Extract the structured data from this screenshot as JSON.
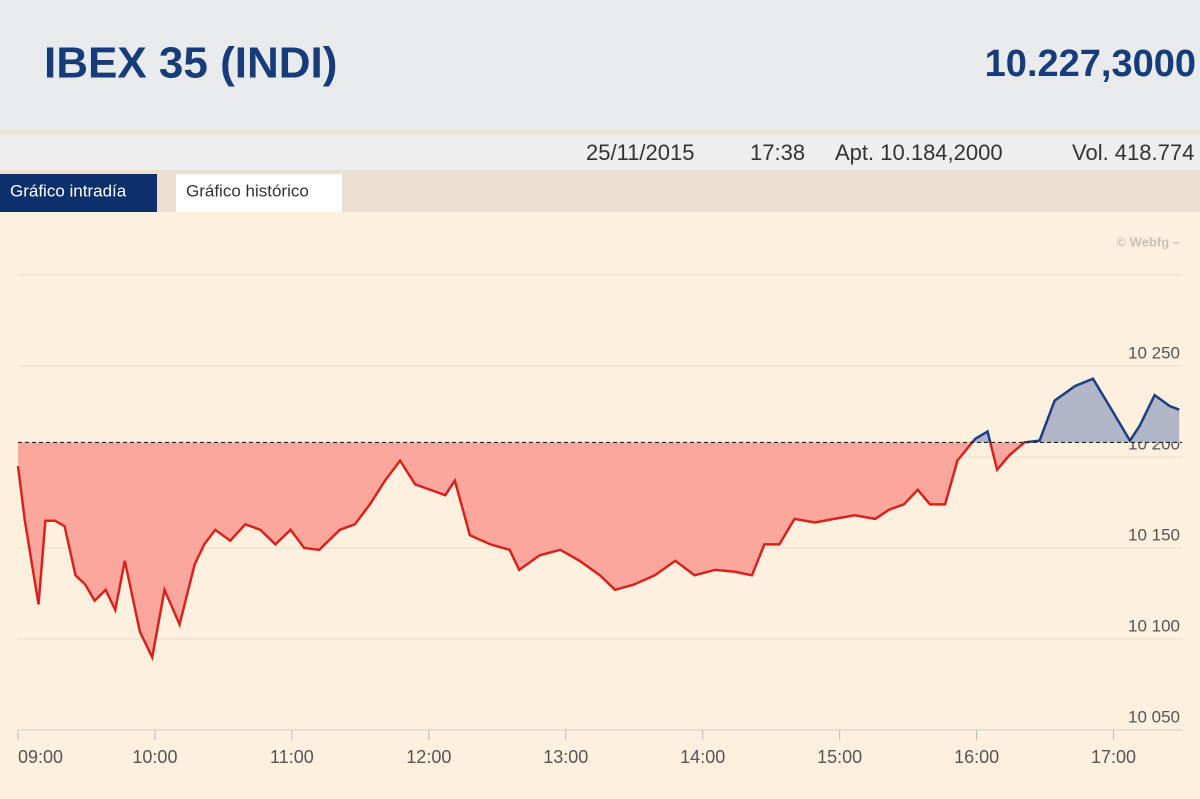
{
  "header": {
    "title": "IBEX 35 (INDI)",
    "price": "10.227,3000"
  },
  "info": {
    "date": "25/11/2015",
    "time": "17:38",
    "open": "Apt. 10.184,2000",
    "volume": "Vol. 418.774"
  },
  "tabs": [
    "Gráfico intradía",
    "Gráfico histórico"
  ],
  "watermark": "© Webfg –",
  "chart_data": {
    "type": "area-line",
    "x": [
      9.0,
      9.05,
      9.15,
      9.2,
      9.27,
      9.34,
      9.42,
      9.49,
      9.56,
      9.64,
      9.71,
      9.78,
      9.89,
      9.98,
      10.07,
      10.18,
      10.29,
      10.36,
      10.44,
      10.55,
      10.66,
      10.77,
      10.88,
      10.99,
      11.09,
      11.2,
      11.35,
      11.46,
      11.57,
      11.68,
      11.79,
      11.9,
      12.01,
      12.12,
      12.19,
      12.3,
      12.45,
      12.59,
      12.66,
      12.81,
      12.96,
      13.1,
      13.25,
      13.36,
      13.5,
      13.65,
      13.8,
      13.94,
      14.09,
      14.23,
      14.36,
      14.45,
      14.56,
      14.67,
      14.82,
      14.96,
      15.11,
      15.26,
      15.36,
      15.47,
      15.57,
      15.66,
      15.77,
      15.86,
      15.99,
      16.08,
      16.15,
      16.24,
      16.35,
      16.46,
      16.57,
      16.72,
      16.85,
      16.97,
      17.12,
      17.19,
      17.3,
      17.41,
      17.48
    ],
    "values": [
      10195,
      10165,
      10119,
      10165,
      10165,
      10162,
      10135,
      10130,
      10121,
      10127,
      10116,
      10143,
      10104,
      10090,
      10127,
      10108,
      10141,
      10152,
      10160,
      10154,
      10163,
      10160,
      10152,
      10160,
      10150,
      10149,
      10160,
      10163,
      10174,
      10187,
      10198,
      10185,
      10182,
      10179,
      10187,
      10157,
      10152,
      10149,
      10138,
      10146,
      10149,
      10143,
      10135,
      10127,
      10130,
      10135,
      10143,
      10135,
      10138,
      10137,
      10135,
      10152,
      10152,
      10166,
      10164,
      10166,
      10168,
      10166,
      10171,
      10174,
      10182,
      10174,
      10174,
      10198,
      10210,
      10214,
      10193,
      10201,
      10208,
      10209,
      10231,
      10239,
      10243,
      10228,
      10209,
      10217,
      10234,
      10228,
      10226
    ],
    "reference": 10208,
    "color_below": "#d7231d",
    "fill_below": "#fba79e",
    "color_above": "#1b3f82",
    "fill_above": "#b0b6c8",
    "xlim": [
      9,
      17.5
    ],
    "xticks": [
      {
        "value": 9,
        "label": "09:00"
      },
      {
        "value": 10,
        "label": "10:00"
      },
      {
        "value": 11,
        "label": "11:00"
      },
      {
        "value": 12,
        "label": "12:00"
      },
      {
        "value": 13,
        "label": "13:00"
      },
      {
        "value": 14,
        "label": "14:00"
      },
      {
        "value": 15,
        "label": "15:00"
      },
      {
        "value": 16,
        "label": "16:00"
      },
      {
        "value": 17,
        "label": "17:00"
      }
    ],
    "ylim": [
      10050,
      10300
    ],
    "yticks": [
      {
        "value": 10050,
        "label": "10 050"
      },
      {
        "value": 10100,
        "label": "10 100"
      },
      {
        "value": 10150,
        "label": "10 150"
      },
      {
        "value": 10200,
        "label": "10 200"
      },
      {
        "value": 10250,
        "label": "10 250"
      }
    ],
    "grid": true
  }
}
